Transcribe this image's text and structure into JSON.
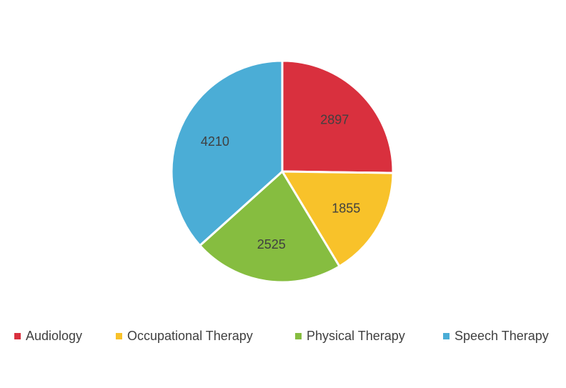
{
  "chart_data": {
    "type": "pie",
    "categories": [
      "Audiology",
      "Occupational Therapy",
      "Physical Therapy",
      "Speech Therapy"
    ],
    "values": [
      2897,
      1855,
      2525,
      4210
    ],
    "colors": [
      "#d9303e",
      "#f8c22a",
      "#86bd40",
      "#4badd6"
    ],
    "data_labels": [
      "2897",
      "1855",
      "2525",
      "4210"
    ],
    "legend_position": "bottom",
    "start_angle": "12 o'clock",
    "direction": "clockwise"
  }
}
